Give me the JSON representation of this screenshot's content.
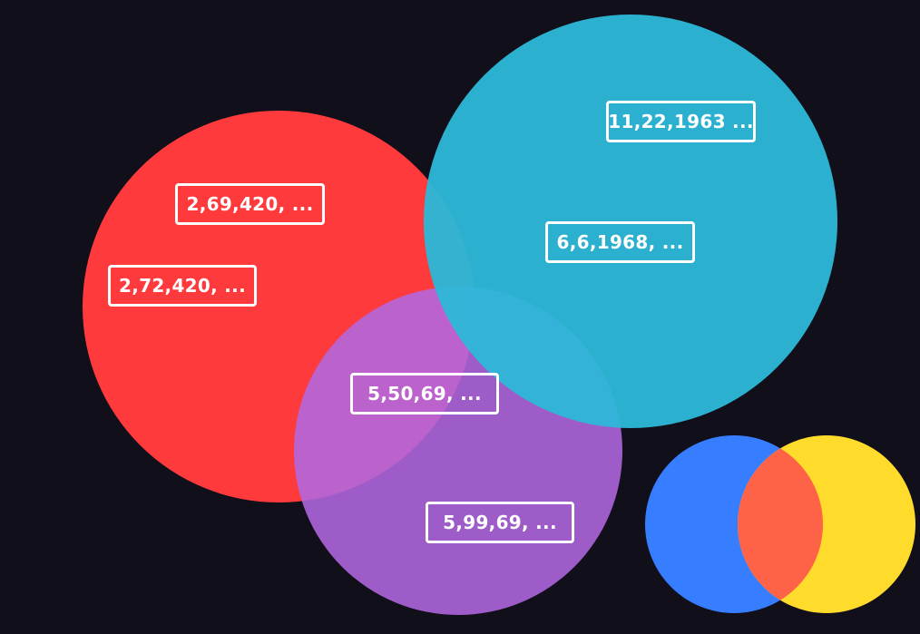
{
  "sets": {
    "red": {
      "color": "#ff3a3c",
      "items": [
        "2,69,420, ...",
        "2,72,420, ..."
      ]
    },
    "purple": {
      "color": "#b268e0",
      "items": [
        "5,99,69, ..."
      ]
    },
    "cyan": {
      "color": "#2eb7d7",
      "items": [
        "11,22,1963 ...",
        "6,6,1968, ..."
      ]
    },
    "intersection": {
      "items": [
        "5,50,69, ..."
      ]
    }
  },
  "logo": {
    "icon": "venn-logo-icon",
    "colors": {
      "left": "#377dff",
      "middle": "#ff6347",
      "right": "#ffdb2c"
    }
  }
}
